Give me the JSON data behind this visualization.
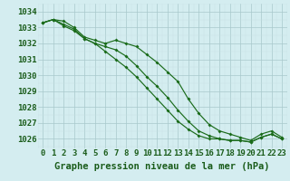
{
  "title": "Graphe pression niveau de la mer (hPa)",
  "x_labels": [
    "0",
    "1",
    "2",
    "3",
    "4",
    "5",
    "6",
    "7",
    "8",
    "9",
    "10",
    "11",
    "12",
    "13",
    "14",
    "15",
    "16",
    "17",
    "18",
    "19",
    "20",
    "21",
    "22",
    "23"
  ],
  "ylim": [
    1025.4,
    1034.4
  ],
  "xlim": [
    -0.5,
    23.5
  ],
  "yticks": [
    1026,
    1027,
    1028,
    1029,
    1030,
    1031,
    1032,
    1033,
    1034
  ],
  "line1": [
    1033.3,
    1033.5,
    1033.4,
    1033.0,
    1032.4,
    1032.2,
    1032.0,
    1032.2,
    1032.0,
    1031.8,
    1031.3,
    1030.8,
    1030.2,
    1029.6,
    1028.5,
    1027.6,
    1026.9,
    1026.5,
    1026.3,
    1026.1,
    1025.9,
    1026.3,
    1026.5,
    1026.1
  ],
  "line2": [
    1033.3,
    1033.5,
    1033.2,
    1032.9,
    1032.3,
    1032.0,
    1031.8,
    1031.6,
    1031.2,
    1030.6,
    1029.9,
    1029.3,
    1028.6,
    1027.8,
    1027.1,
    1026.5,
    1026.2,
    1026.0,
    1025.9,
    1025.9,
    1025.8,
    1026.1,
    1026.3,
    1026.0
  ],
  "line3": [
    1033.3,
    1033.5,
    1033.1,
    1032.8,
    1032.3,
    1032.0,
    1031.5,
    1031.0,
    1030.5,
    1029.9,
    1029.2,
    1028.5,
    1027.8,
    1027.1,
    1026.6,
    1026.2,
    1026.0,
    1026.0,
    1025.9,
    1025.9,
    1025.8,
    1026.1,
    1026.3,
    1026.0
  ],
  "line_color": "#1a6b1a",
  "bg_color": "#d4edf0",
  "grid_color_major": "#a8c8cc",
  "grid_color_minor": "#c8e0e4",
  "tick_label_color": "#1a5c1a",
  "title_color": "#1a5c1a",
  "title_fontsize": 7.5,
  "tick_fontsize": 6.5
}
